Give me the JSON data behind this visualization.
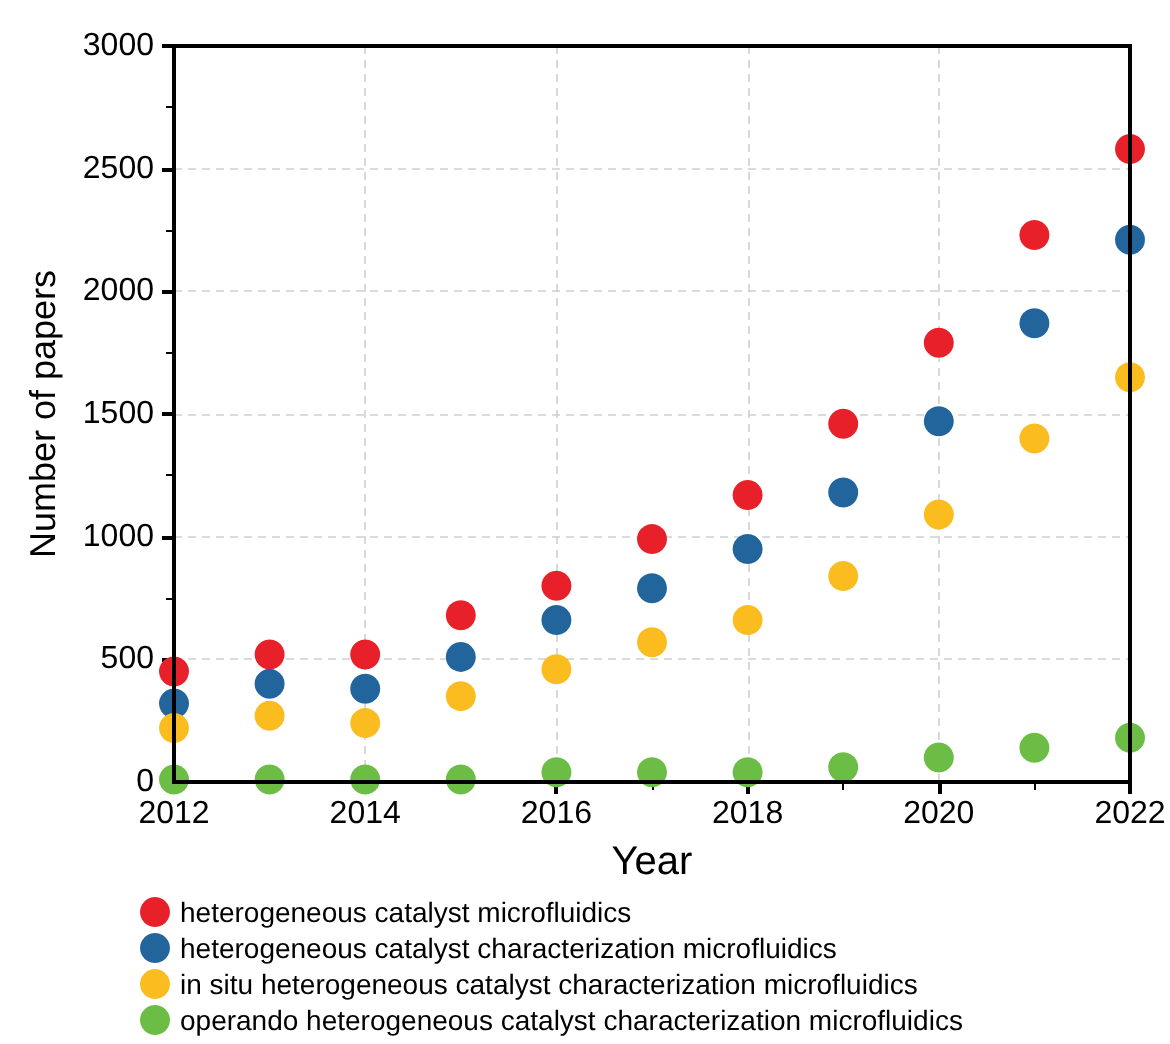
{
  "chart_data": {
    "type": "scatter",
    "xlabel": "Year",
    "ylabel": "Number of papers",
    "x": [
      2012,
      2013,
      2014,
      2015,
      2016,
      2017,
      2018,
      2019,
      2020,
      2021,
      2022
    ],
    "xlim": [
      2012,
      2022
    ],
    "xticks": [
      2012,
      2014,
      2016,
      2018,
      2020,
      2022
    ],
    "ylim": [
      0,
      3000
    ],
    "yticks": [
      0,
      500,
      1000,
      1500,
      2000,
      2500,
      3000
    ],
    "grid": true,
    "legend": "bottom",
    "marker": "circle",
    "series": [
      {
        "name": "heterogeneous catalyst microfluidics",
        "color": "#e8202a",
        "values": [
          450,
          520,
          520,
          680,
          800,
          990,
          1170,
          1460,
          1790,
          2230,
          2580
        ]
      },
      {
        "name": "heterogeneous catalyst characterization microfluidics",
        "color": "#22659c",
        "values": [
          320,
          400,
          380,
          510,
          660,
          790,
          950,
          1180,
          1470,
          1870,
          2210
        ]
      },
      {
        "name": "in situ heterogeneous catalyst characterization microfluidics",
        "color": "#fbbc1f",
        "values": [
          220,
          270,
          240,
          350,
          460,
          570,
          660,
          840,
          1090,
          1400,
          1650
        ]
      },
      {
        "name": "operando heterogeneous catalyst characterization microfluidics",
        "color": "#6bbd45",
        "values": [
          10,
          10,
          10,
          10,
          40,
          40,
          40,
          60,
          100,
          140,
          180
        ]
      }
    ]
  }
}
